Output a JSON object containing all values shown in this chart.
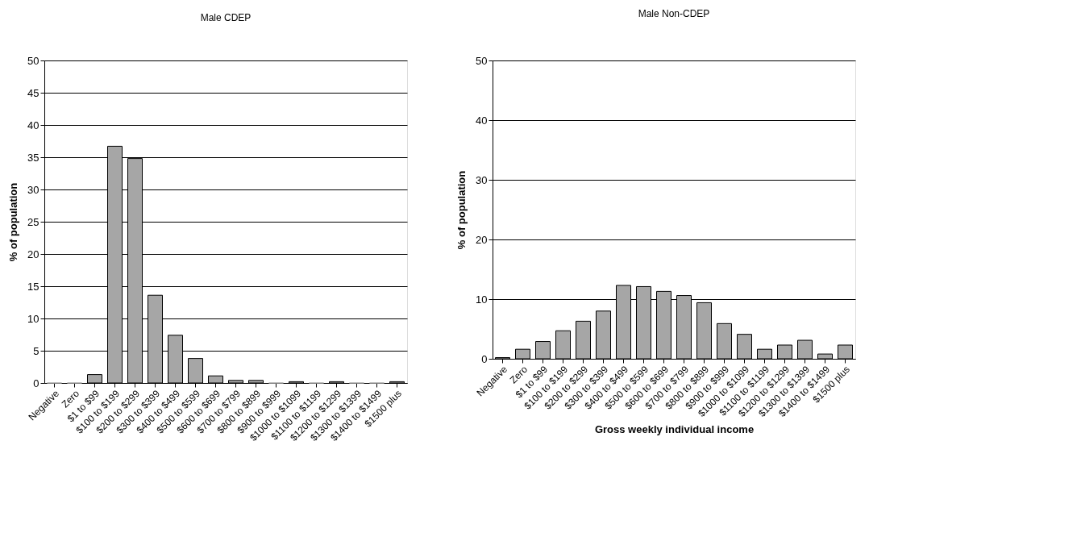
{
  "chart_data": [
    {
      "type": "bar",
      "title": "Male CDEP",
      "ylabel": "% of population",
      "categories": [
        "Negative",
        "Zero",
        "$1 to $99",
        "$100 to $199",
        "$200 to $299",
        "$300 to $399",
        "$400 to $499",
        "$500 to $599",
        "$600 to $699",
        "$700 to $799",
        "$800 to $899",
        "$900 to $999",
        "$1000 to $1099",
        "$1100 to $1199",
        "$1200 to $1299",
        "$1300 to $1399",
        "$1400 to $1499",
        "$1500 plus"
      ],
      "values": [
        0,
        0,
        1.3,
        36.7,
        34.8,
        13.6,
        7.4,
        3.8,
        1.1,
        0.4,
        0.4,
        0,
        0.2,
        0,
        0.2,
        0,
        0,
        0.2
      ],
      "color": "#a6a6a6",
      "ylim": [
        0,
        50
      ],
      "yticks": [
        0,
        5,
        10,
        15,
        20,
        25,
        30,
        35,
        40,
        45,
        50
      ],
      "grid": "y"
    },
    {
      "type": "bar",
      "title": "Male Non-CDEP",
      "ylabel": "% of population",
      "xlabel": "Gross weekly individual income",
      "categories": [
        "Negative",
        "Zero",
        "$1 to $99",
        "$100 to $199",
        "$200 to $299",
        "$300 to $399",
        "$400 to $499",
        "$500 to $599",
        "$600 to $699",
        "$700 to $799",
        "$800 to $899",
        "$900 to $999",
        "$1000 to $1099",
        "$1100 to $1199",
        "$1200 to $1299",
        "$1300 to $1399",
        "$1400 to $1499",
        "$1500 plus"
      ],
      "values": [
        0.2,
        1.6,
        2.9,
        4.7,
        6.3,
        8.0,
        12.3,
        12.1,
        11.3,
        10.6,
        9.4,
        5.9,
        4.1,
        1.6,
        2.3,
        3.1,
        0.8,
        2.3
      ],
      "color": "#a6a6a6",
      "ylim": [
        0,
        50
      ],
      "yticks": [
        0,
        10,
        20,
        30,
        40,
        50
      ],
      "grid": "y"
    }
  ]
}
